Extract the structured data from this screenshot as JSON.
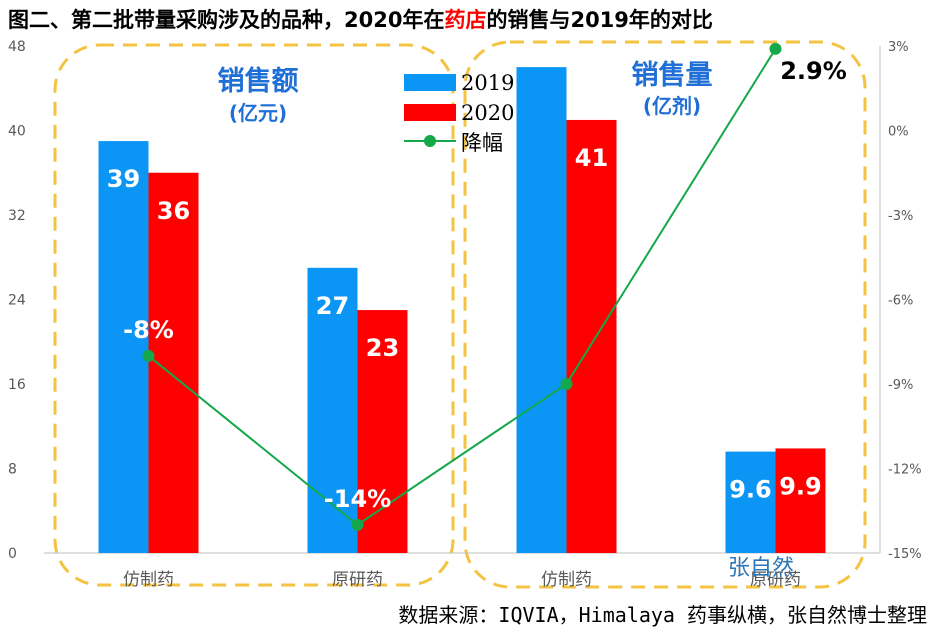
{
  "title": {
    "before": "图二、第二批带量采购涉及的品种，2020年在",
    "highlight": "药店",
    "after": "的销售与2019年的对比"
  },
  "colors": {
    "series_2019": "#0b96f5",
    "series_2020": "#ff0000",
    "line": "#14a84a",
    "group_box": "#f5c342",
    "group_title": "#1f6fd6"
  },
  "groups": [
    {
      "title": "销售额",
      "subtitle": "(亿元)"
    },
    {
      "title": "销售量",
      "subtitle": "(亿剂)"
    }
  ],
  "legend": [
    "2019",
    "2020",
    "降幅"
  ],
  "watermark": "张自然",
  "source": "数据来源：IQVIA，Himalaya 药事纵横，张自然博士整理",
  "chart_data": {
    "type": "bar",
    "categories": [
      "仿制药",
      "原研药",
      "仿制药",
      "原研药"
    ],
    "series": [
      {
        "name": "2019",
        "values": [
          39,
          27,
          46,
          9.6
        ],
        "labels": [
          "39",
          "27",
          "",
          "9.6"
        ]
      },
      {
        "name": "2020",
        "values": [
          36,
          23,
          41,
          9.9
        ],
        "labels": [
          "36",
          "23",
          "41",
          "9.9"
        ]
      }
    ],
    "line_series": {
      "name": "降幅",
      "axis": "right",
      "values": [
        -8,
        -14,
        -9,
        2.9
      ],
      "labels": [
        "-8%",
        "-14%",
        "",
        "2.9%"
      ]
    },
    "y_left": {
      "min": 0,
      "max": 48,
      "ticks": [
        0,
        8,
        16,
        24,
        32,
        40,
        48
      ]
    },
    "y_right": {
      "min": -15,
      "max": 3,
      "ticks": [
        "-15%",
        "-12%",
        "-9%",
        "-6%",
        "-3%",
        "0%",
        "3%"
      ]
    },
    "legend_position": "top-center",
    "grid": false
  }
}
